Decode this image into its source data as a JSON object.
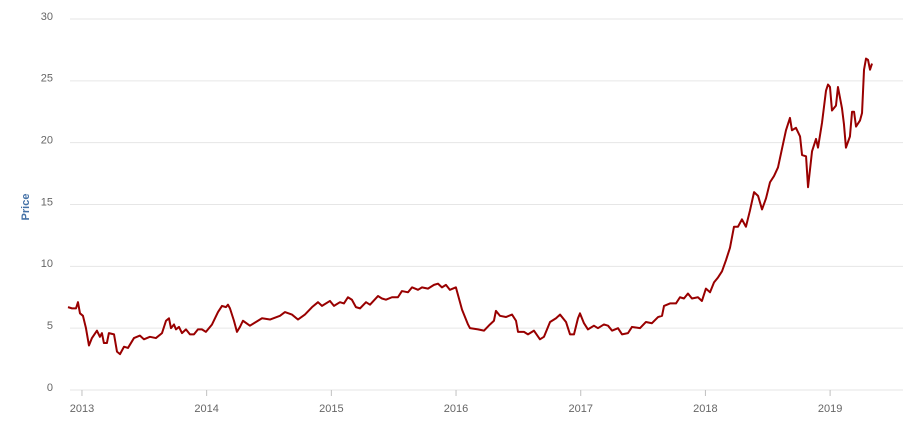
{
  "chart_data": {
    "type": "line",
    "y_label": "Price",
    "x": [
      2012.888,
      2012.92,
      2012.952,
      2012.968,
      2012.984,
      2013.008,
      2013.032,
      2013.056,
      2013.08,
      2013.12,
      2013.144,
      2013.16,
      2013.176,
      2013.2,
      2013.216,
      2013.257,
      2013.281,
      2013.305,
      2013.337,
      2013.369,
      2013.417,
      2013.465,
      2013.497,
      2013.545,
      2013.593,
      2013.642,
      2013.674,
      2013.698,
      2013.714,
      2013.738,
      2013.754,
      2013.778,
      2013.802,
      2013.834,
      2013.866,
      2013.898,
      2013.93,
      2013.962,
      2013.994,
      2014.043,
      2014.091,
      2014.123,
      2014.155,
      2014.171,
      2014.187,
      2014.219,
      2014.243,
      2014.267,
      2014.291,
      2014.347,
      2014.444,
      2014.508,
      2014.588,
      2014.628,
      2014.684,
      2014.732,
      2014.788,
      2014.845,
      2014.893,
      2014.925,
      2014.989,
      2015.021,
      2015.069,
      2015.101,
      2015.133,
      2015.165,
      2015.197,
      2015.23,
      2015.278,
      2015.31,
      2015.374,
      2015.406,
      2015.438,
      2015.486,
      2015.534,
      2015.566,
      2015.615,
      2015.647,
      2015.695,
      2015.727,
      2015.775,
      2015.823,
      2015.855,
      2015.887,
      2015.919,
      2015.951,
      2015.999,
      2016.048,
      2016.096,
      2016.112,
      2016.176,
      2016.224,
      2016.272,
      2016.304,
      2016.32,
      2016.352,
      2016.4,
      2016.449,
      2016.481,
      2016.497,
      2016.545,
      2016.577,
      2016.625,
      2016.673,
      2016.705,
      2016.754,
      2016.802,
      2016.834,
      2016.882,
      2016.914,
      2016.946,
      2016.978,
      2016.994,
      2017.026,
      2017.058,
      2017.106,
      2017.138,
      2017.186,
      2017.219,
      2017.251,
      2017.299,
      2017.331,
      2017.379,
      2017.411,
      2017.475,
      2017.523,
      2017.571,
      2017.62,
      2017.652,
      2017.668,
      2017.716,
      2017.764,
      2017.796,
      2017.828,
      2017.86,
      2017.892,
      2017.94,
      2017.972,
      2018.004,
      2018.037,
      2018.069,
      2018.101,
      2018.133,
      2018.165,
      2018.197,
      2018.229,
      2018.261,
      2018.293,
      2018.325,
      2018.357,
      2018.39,
      2018.422,
      2018.454,
      2018.486,
      2018.518,
      2018.55,
      2018.582,
      2018.614,
      2018.646,
      2018.678,
      2018.694,
      2018.726,
      2018.759,
      2018.775,
      2018.807,
      2018.823,
      2018.855,
      2018.887,
      2018.903,
      2018.935,
      2018.967,
      2018.983,
      2018.999,
      2019.015,
      2019.047,
      2019.063,
      2019.095,
      2019.111,
      2019.127,
      2019.159,
      2019.176,
      2019.192,
      2019.208,
      2019.24,
      2019.256,
      2019.272,
      2019.288,
      2019.304,
      2019.32,
      2019.336
    ],
    "series": [
      {
        "color": "#990000",
        "values": [
          6.7,
          6.6,
          6.6,
          7.1,
          6.2,
          6.0,
          5.0,
          3.6,
          4.2,
          4.8,
          4.3,
          4.6,
          3.8,
          3.8,
          4.6,
          4.5,
          3.1,
          2.9,
          3.5,
          3.4,
          4.2,
          4.4,
          4.1,
          4.3,
          4.2,
          4.6,
          5.6,
          5.8,
          5.0,
          5.3,
          4.9,
          5.1,
          4.6,
          4.9,
          4.5,
          4.5,
          4.9,
          4.9,
          4.7,
          5.3,
          6.3,
          6.8,
          6.7,
          6.9,
          6.6,
          5.6,
          4.7,
          5.1,
          5.6,
          5.2,
          5.8,
          5.7,
          6.0,
          6.3,
          6.1,
          5.7,
          6.1,
          6.7,
          7.1,
          6.8,
          7.2,
          6.8,
          7.1,
          7.0,
          7.5,
          7.3,
          6.7,
          6.6,
          7.1,
          6.9,
          7.6,
          7.4,
          7.3,
          7.5,
          7.5,
          8.0,
          7.9,
          8.3,
          8.1,
          8.3,
          8.2,
          8.5,
          8.6,
          8.3,
          8.5,
          8.1,
          8.3,
          6.5,
          5.3,
          5.0,
          4.9,
          4.8,
          5.3,
          5.6,
          6.4,
          6.0,
          5.9,
          6.1,
          5.6,
          4.7,
          4.7,
          4.5,
          4.8,
          4.1,
          4.3,
          5.5,
          5.8,
          6.1,
          5.5,
          4.5,
          4.5,
          5.8,
          6.2,
          5.4,
          4.9,
          5.2,
          5.0,
          5.3,
          5.2,
          4.8,
          5.0,
          4.5,
          4.6,
          5.1,
          5.0,
          5.5,
          5.4,
          5.9,
          6.0,
          6.8,
          7.0,
          7.0,
          7.5,
          7.4,
          7.8,
          7.4,
          7.5,
          7.2,
          8.2,
          7.9,
          8.7,
          9.1,
          9.6,
          10.5,
          11.5,
          13.2,
          13.2,
          13.8,
          13.2,
          14.5,
          16.0,
          15.7,
          14.6,
          15.5,
          16.8,
          17.3,
          18.0,
          19.5,
          21.0,
          22.0,
          21.0,
          21.2,
          20.5,
          19.0,
          18.9,
          16.4,
          19.3,
          20.3,
          19.6,
          21.6,
          24.2,
          24.7,
          24.5,
          22.6,
          23.0,
          24.5,
          22.8,
          21.5,
          19.6,
          20.5,
          22.5,
          22.5,
          21.3,
          21.8,
          22.4,
          25.9,
          26.8,
          26.7,
          25.9,
          26.4
        ]
      }
    ],
    "xlim": [
      2012.888,
      2019.352
    ],
    "xticks": [
      2013,
      2014,
      2015,
      2016,
      2017,
      2018,
      2019
    ],
    "ylim": [
      0,
      30
    ],
    "yticks": [
      0,
      5,
      10,
      15,
      20,
      25,
      30
    ],
    "grid": true
  }
}
